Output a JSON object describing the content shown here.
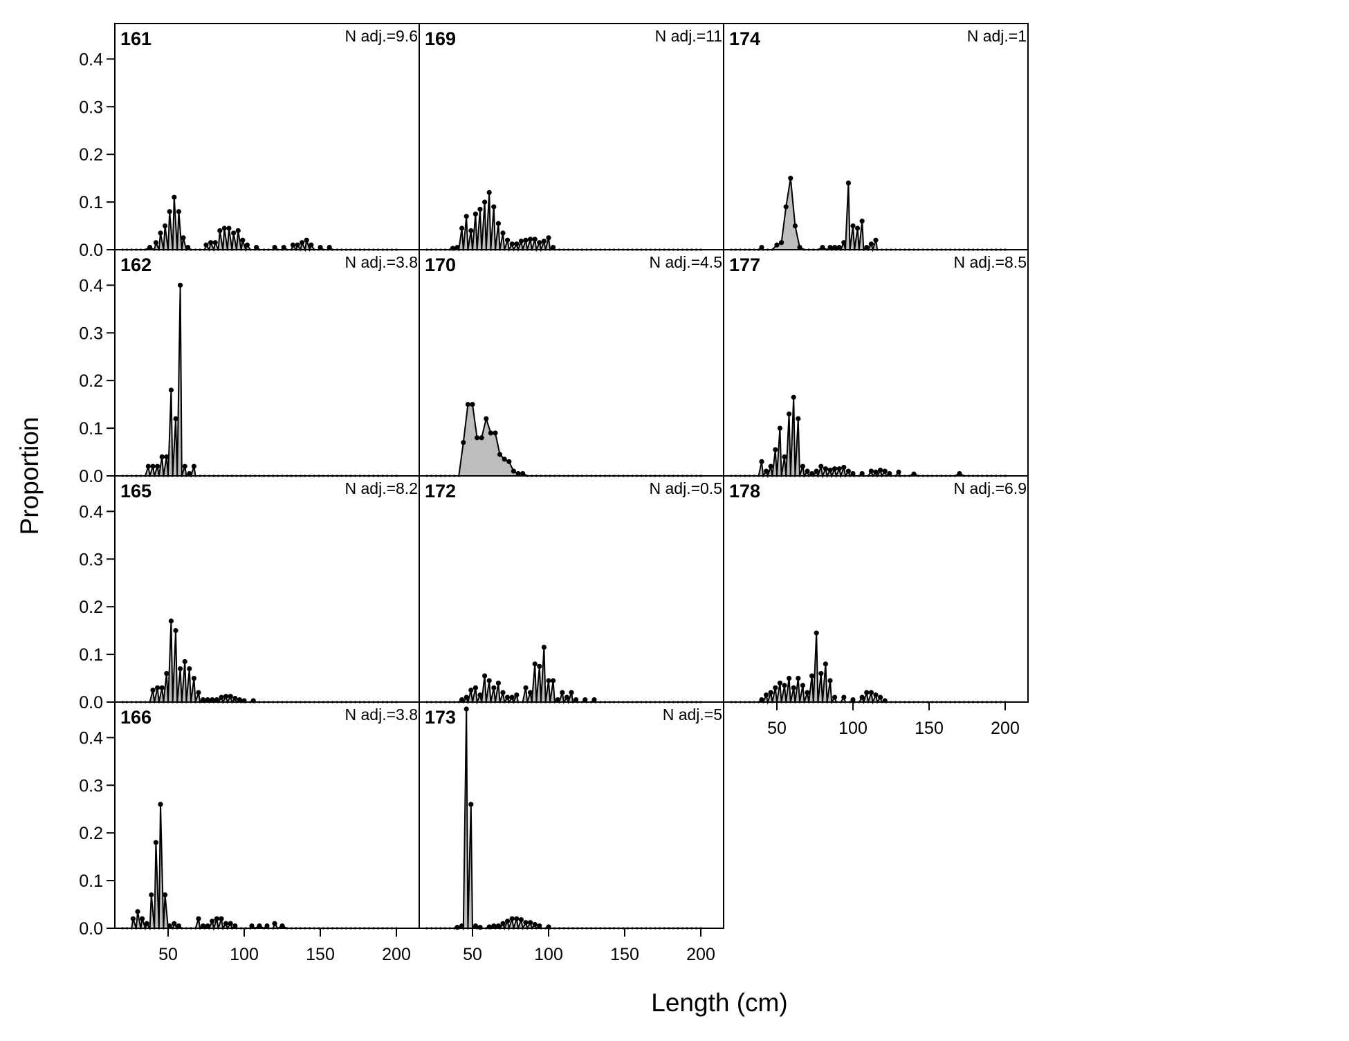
{
  "chart_data": {
    "type": "area",
    "layout": "lattice panels, 4 rows x 3 columns, shared axes",
    "xlabel": "Length (cm)",
    "ylabel": "Proportion",
    "xlim": [
      15,
      215
    ],
    "ylim": [
      0,
      0.46
    ],
    "xticks": [
      "50",
      "100",
      "150",
      "200"
    ],
    "yticks": [
      "0.0",
      "0.1",
      "0.2",
      "0.3",
      "0.4"
    ],
    "bin_start": 20,
    "bin_width": 3,
    "bin_end": 200,
    "fill_color": "#bdbdbd",
    "line_color": "#000000",
    "panels": [
      {
        "id": "161",
        "nadj": "N adj.=9.6",
        "points": [
          [
            38,
            0.005
          ],
          [
            42,
            0.015
          ],
          [
            45,
            0.035
          ],
          [
            48,
            0.05
          ],
          [
            51,
            0.08
          ],
          [
            54,
            0.11
          ],
          [
            57,
            0.08
          ],
          [
            60,
            0.025
          ],
          [
            63,
            0.005
          ],
          [
            75,
            0.01
          ],
          [
            78,
            0.015
          ],
          [
            81,
            0.015
          ],
          [
            84,
            0.04
          ],
          [
            87,
            0.045
          ],
          [
            90,
            0.045
          ],
          [
            93,
            0.035
          ],
          [
            96,
            0.04
          ],
          [
            99,
            0.02
          ],
          [
            102,
            0.01
          ],
          [
            108,
            0.005
          ],
          [
            120,
            0.005
          ],
          [
            126,
            0.005
          ],
          [
            132,
            0.01
          ],
          [
            135,
            0.01
          ],
          [
            138,
            0.015
          ],
          [
            141,
            0.02
          ],
          [
            144,
            0.01
          ],
          [
            150,
            0.005
          ],
          [
            156,
            0.005
          ]
        ]
      },
      {
        "id": "169",
        "nadj": "N adj.=11",
        "points": [
          [
            37,
            0.003
          ],
          [
            40,
            0.005
          ],
          [
            43,
            0.045
          ],
          [
            46,
            0.07
          ],
          [
            49,
            0.04
          ],
          [
            52,
            0.075
          ],
          [
            55,
            0.085
          ],
          [
            58,
            0.1
          ],
          [
            61,
            0.12
          ],
          [
            64,
            0.09
          ],
          [
            67,
            0.055
          ],
          [
            70,
            0.035
          ],
          [
            73,
            0.02
          ],
          [
            76,
            0.012
          ],
          [
            79,
            0.012
          ],
          [
            82,
            0.018
          ],
          [
            85,
            0.02
          ],
          [
            88,
            0.022
          ],
          [
            91,
            0.022
          ],
          [
            94,
            0.015
          ],
          [
            97,
            0.018
          ],
          [
            100,
            0.025
          ],
          [
            103,
            0.005
          ]
        ]
      },
      {
        "id": "174",
        "nadj": "N adj.=1",
        "points": [
          [
            40,
            0.005
          ],
          [
            50,
            0.01
          ],
          [
            53,
            0.015
          ],
          [
            56,
            0.09
          ],
          [
            59,
            0.15
          ],
          [
            62,
            0.05
          ],
          [
            65,
            0.005
          ],
          [
            80,
            0.005
          ],
          [
            85,
            0.005
          ],
          [
            88,
            0.005
          ],
          [
            91,
            0.005
          ],
          [
            94,
            0.015
          ],
          [
            97,
            0.14
          ],
          [
            100,
            0.05
          ],
          [
            103,
            0.045
          ],
          [
            106,
            0.06
          ],
          [
            109,
            0.005
          ],
          [
            112,
            0.012
          ],
          [
            115,
            0.02
          ]
        ]
      },
      {
        "id": "162",
        "nadj": "N adj.=3.8",
        "points": [
          [
            37,
            0.02
          ],
          [
            40,
            0.02
          ],
          [
            43,
            0.02
          ],
          [
            46,
            0.04
          ],
          [
            49,
            0.04
          ],
          [
            52,
            0.18
          ],
          [
            55,
            0.12
          ],
          [
            58,
            0.4
          ],
          [
            61,
            0.02
          ],
          [
            64,
            0.005
          ],
          [
            67,
            0.02
          ]
        ]
      },
      {
        "id": "170",
        "nadj": "N adj.=4.5",
        "points": [
          [
            44,
            0.07
          ],
          [
            47,
            0.15
          ],
          [
            50,
            0.15
          ],
          [
            53,
            0.08
          ],
          [
            56,
            0.08
          ],
          [
            59,
            0.12
          ],
          [
            62,
            0.09
          ],
          [
            65,
            0.09
          ],
          [
            68,
            0.045
          ],
          [
            71,
            0.035
          ],
          [
            74,
            0.03
          ],
          [
            77,
            0.01
          ],
          [
            80,
            0.005
          ],
          [
            83,
            0.005
          ]
        ]
      },
      {
        "id": "177",
        "nadj": "N adj.=8.5",
        "points": [
          [
            40,
            0.03
          ],
          [
            43,
            0.01
          ],
          [
            46,
            0.02
          ],
          [
            49,
            0.055
          ],
          [
            52,
            0.1
          ],
          [
            55,
            0.04
          ],
          [
            58,
            0.13
          ],
          [
            61,
            0.165
          ],
          [
            64,
            0.12
          ],
          [
            67,
            0.02
          ],
          [
            70,
            0.01
          ],
          [
            73,
            0.005
          ],
          [
            76,
            0.01
          ],
          [
            79,
            0.02
          ],
          [
            82,
            0.015
          ],
          [
            85,
            0.012
          ],
          [
            88,
            0.015
          ],
          [
            91,
            0.015
          ],
          [
            94,
            0.018
          ],
          [
            97,
            0.01
          ],
          [
            100,
            0.005
          ],
          [
            106,
            0.005
          ],
          [
            112,
            0.01
          ],
          [
            115,
            0.008
          ],
          [
            118,
            0.012
          ],
          [
            121,
            0.01
          ],
          [
            124,
            0.005
          ],
          [
            130,
            0.008
          ],
          [
            140,
            0.004
          ],
          [
            170,
            0.005
          ]
        ]
      },
      {
        "id": "165",
        "nadj": "N adj.=8.2",
        "points": [
          [
            40,
            0.025
          ],
          [
            43,
            0.03
          ],
          [
            46,
            0.03
          ],
          [
            49,
            0.06
          ],
          [
            52,
            0.17
          ],
          [
            55,
            0.15
          ],
          [
            58,
            0.07
          ],
          [
            61,
            0.085
          ],
          [
            64,
            0.07
          ],
          [
            67,
            0.05
          ],
          [
            70,
            0.02
          ],
          [
            73,
            0.005
          ],
          [
            76,
            0.005
          ],
          [
            79,
            0.005
          ],
          [
            82,
            0.005
          ],
          [
            85,
            0.01
          ],
          [
            88,
            0.012
          ],
          [
            91,
            0.012
          ],
          [
            94,
            0.008
          ],
          [
            97,
            0.005
          ],
          [
            100,
            0.003
          ],
          [
            106,
            0.003
          ]
        ]
      },
      {
        "id": "172",
        "nadj": "N adj.=0.5",
        "points": [
          [
            43,
            0.005
          ],
          [
            46,
            0.01
          ],
          [
            49,
            0.025
          ],
          [
            52,
            0.03
          ],
          [
            55,
            0.015
          ],
          [
            58,
            0.055
          ],
          [
            61,
            0.045
          ],
          [
            64,
            0.03
          ],
          [
            67,
            0.04
          ],
          [
            70,
            0.02
          ],
          [
            73,
            0.01
          ],
          [
            76,
            0.01
          ],
          [
            79,
            0.015
          ],
          [
            85,
            0.03
          ],
          [
            88,
            0.02
          ],
          [
            91,
            0.08
          ],
          [
            94,
            0.075
          ],
          [
            97,
            0.115
          ],
          [
            100,
            0.045
          ],
          [
            103,
            0.045
          ],
          [
            106,
            0.005
          ],
          [
            109,
            0.02
          ],
          [
            112,
            0.01
          ],
          [
            115,
            0.02
          ],
          [
            118,
            0.005
          ],
          [
            124,
            0.005
          ],
          [
            130,
            0.005
          ]
        ]
      },
      {
        "id": "178",
        "nadj": "N adj.=6.9",
        "points": [
          [
            40,
            0.005
          ],
          [
            43,
            0.015
          ],
          [
            46,
            0.02
          ],
          [
            49,
            0.03
          ],
          [
            52,
            0.04
          ],
          [
            55,
            0.035
          ],
          [
            58,
            0.05
          ],
          [
            61,
            0.03
          ],
          [
            64,
            0.05
          ],
          [
            67,
            0.035
          ],
          [
            70,
            0.02
          ],
          [
            73,
            0.055
          ],
          [
            76,
            0.145
          ],
          [
            79,
            0.06
          ],
          [
            82,
            0.08
          ],
          [
            85,
            0.045
          ],
          [
            88,
            0.01
          ],
          [
            94,
            0.01
          ],
          [
            100,
            0.005
          ],
          [
            106,
            0.01
          ],
          [
            109,
            0.02
          ],
          [
            112,
            0.02
          ],
          [
            115,
            0.015
          ],
          [
            118,
            0.01
          ],
          [
            121,
            0.003
          ]
        ]
      },
      {
        "id": "166",
        "nadj": "N adj.=3.8",
        "points": [
          [
            27,
            0.02
          ],
          [
            30,
            0.035
          ],
          [
            33,
            0.02
          ],
          [
            36,
            0.01
          ],
          [
            39,
            0.07
          ],
          [
            42,
            0.18
          ],
          [
            45,
            0.26
          ],
          [
            48,
            0.07
          ],
          [
            51,
            0.005
          ],
          [
            54,
            0.01
          ],
          [
            57,
            0.005
          ],
          [
            70,
            0.02
          ],
          [
            73,
            0.005
          ],
          [
            76,
            0.005
          ],
          [
            79,
            0.015
          ],
          [
            82,
            0.02
          ],
          [
            85,
            0.02
          ],
          [
            88,
            0.01
          ],
          [
            91,
            0.01
          ],
          [
            94,
            0.005
          ],
          [
            105,
            0.005
          ],
          [
            110,
            0.005
          ],
          [
            115,
            0.005
          ],
          [
            120,
            0.01
          ],
          [
            125,
            0.005
          ]
        ]
      },
      {
        "id": "173",
        "nadj": "N adj.=5",
        "points": [
          [
            40,
            0.002
          ],
          [
            43,
            0.005
          ],
          [
            46,
            0.48
          ],
          [
            49,
            0.26
          ],
          [
            52,
            0.005
          ],
          [
            55,
            0.002
          ],
          [
            61,
            0.003
          ],
          [
            64,
            0.005
          ],
          [
            67,
            0.005
          ],
          [
            70,
            0.01
          ],
          [
            73,
            0.015
          ],
          [
            76,
            0.02
          ],
          [
            79,
            0.02
          ],
          [
            82,
            0.018
          ],
          [
            85,
            0.012
          ],
          [
            88,
            0.012
          ],
          [
            91,
            0.008
          ],
          [
            94,
            0.005
          ],
          [
            100,
            0.003
          ]
        ]
      }
    ]
  }
}
